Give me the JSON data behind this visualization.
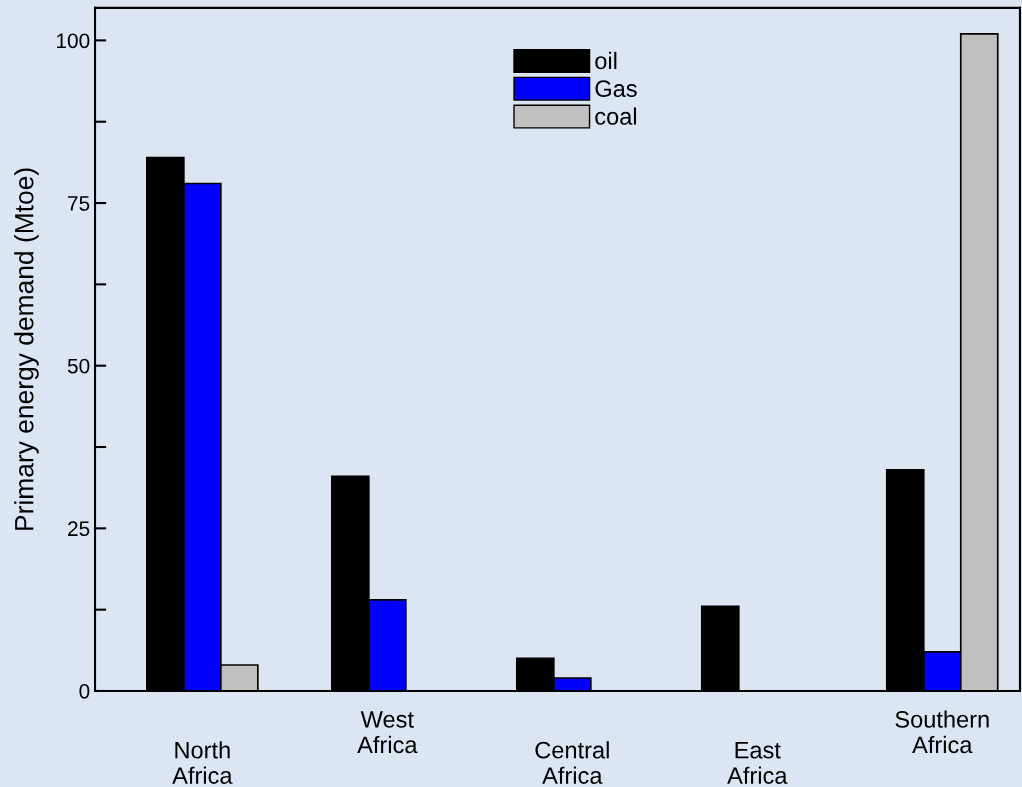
{
  "chart_data": {
    "type": "bar",
    "ylabel": "Primary energy demand (Mtoe)",
    "categories": [
      "North\nAfrica",
      "West\nAfrica",
      "Central\nAfrica",
      "East\nAfrica",
      "Southern\nAfrica"
    ],
    "series": [
      {
        "name": "oil",
        "color": "#000000",
        "values": [
          82,
          33,
          5,
          13,
          34
        ]
      },
      {
        "name": "Gas",
        "color": "#0000ff",
        "values": [
          78,
          14,
          2,
          null,
          6
        ]
      },
      {
        "name": "coal",
        "color": "#c0c0c0",
        "values": [
          4,
          null,
          0,
          null,
          101
        ]
      }
    ],
    "ylim": [
      0,
      105
    ],
    "yticks": [
      0,
      {
        "value": 12.5,
        "label": null
      },
      25,
      {
        "value": 37.5,
        "label": null
      },
      50,
      {
        "value": 62.5,
        "label": null
      },
      75,
      {
        "value": 87.5,
        "label": null
      },
      100
    ],
    "grid": false,
    "legend": "top"
  }
}
